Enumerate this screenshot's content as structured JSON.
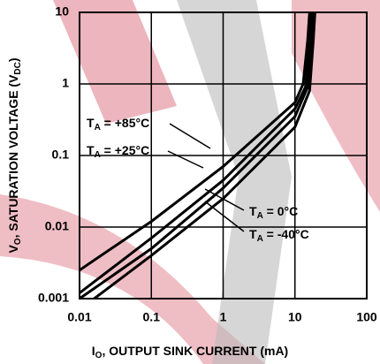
{
  "chart_data": {
    "type": "line",
    "xlabel": [
      "I",
      "O",
      ", OUTPUT SINK CURRENT (mA)"
    ],
    "ylabel": [
      "V",
      "O",
      ", SATURATION VOLTAGE (V",
      "DC",
      ")"
    ],
    "log_x": true,
    "log_y": true,
    "grid": true,
    "xlim": [
      0.01,
      100
    ],
    "ylim": [
      0.001,
      10
    ],
    "xticks": [
      0.01,
      0.1,
      1,
      10,
      100
    ],
    "yticks": [
      0.001,
      0.01,
      0.1,
      1,
      10
    ],
    "series": [
      {
        "name": [
          "T",
          "A",
          " = +85°C"
        ],
        "color": "#000000",
        "x": [
          0.01,
          0.1,
          1,
          10,
          13,
          15,
          16
        ],
        "values": [
          0.0025,
          0.012,
          0.07,
          0.55,
          1,
          4,
          10
        ]
      },
      {
        "name": [
          "T",
          "A",
          " = +25°C"
        ],
        "color": "#000000",
        "x": [
          0.01,
          0.1,
          1,
          10,
          14,
          16,
          17
        ],
        "values": [
          0.0012,
          0.007,
          0.045,
          0.45,
          0.9,
          4,
          10
        ]
      },
      {
        "name": [
          "T",
          "A",
          " = 0°C"
        ],
        "color": "#000000",
        "x": [
          0.01,
          0.1,
          1,
          10,
          15,
          17,
          18
        ],
        "values": [
          0.001,
          0.005,
          0.035,
          0.35,
          0.9,
          4,
          10
        ]
      },
      {
        "name": [
          "T",
          "A",
          " = -40°C"
        ],
        "color": "#000000",
        "x": [
          0.01,
          0.1,
          1,
          10,
          16,
          18,
          19
        ],
        "values": [
          0.0007,
          0.004,
          0.025,
          0.25,
          0.8,
          4,
          10
        ]
      }
    ]
  }
}
